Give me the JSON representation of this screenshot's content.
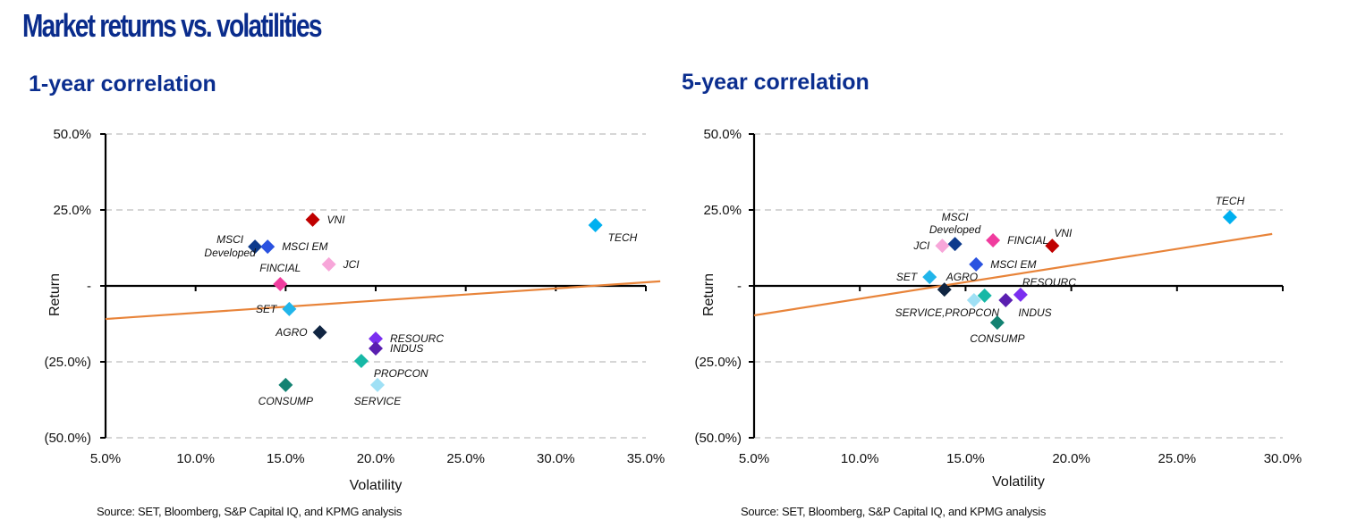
{
  "title": "Market returns vs. volatilities",
  "source_note": "Source: SET, Bloomberg, S&P Capital IQ, and KPMG analysis",
  "chart_data": [
    {
      "type": "scatter",
      "title": "1-year correlation",
      "xlabel": "Volatility",
      "ylabel": "Return",
      "xlim": [
        5,
        35
      ],
      "ylim": [
        -50,
        50
      ],
      "x_ticks": [
        5,
        10,
        15,
        20,
        25,
        30,
        35
      ],
      "x_tick_labels": [
        "5.0%",
        "10.0%",
        "15.0%",
        "20.0%",
        "25.0%",
        "30.0%",
        "35.0%"
      ],
      "y_ticks": [
        50,
        25,
        0,
        -25,
        -50
      ],
      "y_tick_labels": [
        "50.0%",
        "25.0%",
        "-",
        "(25.0%)",
        "(50.0%)"
      ],
      "grid": "horizontal dashed",
      "trendline": {
        "color": "#e8843a",
        "x": [
          5,
          35.8
        ],
        "y": [
          -10.9,
          1.5
        ]
      },
      "points": [
        {
          "label": "VNI",
          "x": 16.5,
          "y": 21.8,
          "color": "#c00000",
          "label_pos": "right"
        },
        {
          "label": "TECH",
          "x": 32.2,
          "y": 20.0,
          "color": "#00b0f0",
          "label_pos": "below-right"
        },
        {
          "label": "MSCI Developed",
          "x": 13.3,
          "y": 12.9,
          "color": "#0d3a8c",
          "label_pos": "left"
        },
        {
          "label": "MSCI EM",
          "x": 14.0,
          "y": 12.9,
          "color": "#2a52e0",
          "label_pos": "right"
        },
        {
          "label": "JCI",
          "x": 17.4,
          "y": 7.1,
          "color": "#f7a6d9",
          "label_pos": "right"
        },
        {
          "label": "FINCIAL",
          "x": 14.7,
          "y": 0.6,
          "color": "#f03c9e",
          "label_pos": "above"
        },
        {
          "label": "SET",
          "x": 15.2,
          "y": -7.6,
          "color": "#21b5ea",
          "label_pos": "left"
        },
        {
          "label": "AGRO",
          "x": 16.9,
          "y": -15.3,
          "color": "#102542",
          "label_pos": "left"
        },
        {
          "label": "RESOURC",
          "x": 20.0,
          "y": -17.4,
          "color": "#7b2ff0",
          "label_pos": "right"
        },
        {
          "label": "INDUS",
          "x": 20.0,
          "y": -20.6,
          "color": "#5a1fb0",
          "label_pos": "right"
        },
        {
          "label": "PROPCON",
          "x": 19.2,
          "y": -24.7,
          "color": "#17b8a6",
          "label_pos": "below-right"
        },
        {
          "label": "CONSUMP",
          "x": 15.0,
          "y": -32.6,
          "color": "#138272",
          "label_pos": "below"
        },
        {
          "label": "SERVICE",
          "x": 20.1,
          "y": -32.6,
          "color": "#9fe0f5",
          "label_pos": "below"
        }
      ]
    },
    {
      "type": "scatter",
      "title": "5-year correlation",
      "xlabel": "Volatility",
      "ylabel": "Return",
      "xlim": [
        5,
        30
      ],
      "ylim": [
        -50,
        50
      ],
      "x_ticks": [
        5,
        10,
        15,
        20,
        25,
        30
      ],
      "x_tick_labels": [
        "5.0%",
        "10.0%",
        "15.0%",
        "20.0%",
        "25.0%",
        "30.0%"
      ],
      "y_ticks": [
        50,
        25,
        0,
        -25,
        -50
      ],
      "y_tick_labels": [
        "50.0%",
        "25.0%",
        "-",
        "(25.0%)",
        "(50.0%)"
      ],
      "grid": "horizontal dashed",
      "trendline": {
        "color": "#e8843a",
        "x": [
          5,
          29.5
        ],
        "y": [
          -9.7,
          17.1
        ]
      },
      "points": [
        {
          "label": "TECH",
          "x": 27.5,
          "y": 22.6,
          "color": "#00b0f0",
          "label_pos": "above"
        },
        {
          "label": "VNI",
          "x": 19.1,
          "y": 13.2,
          "color": "#c00000",
          "label_pos": "above-right"
        },
        {
          "label": "FINCIAL",
          "x": 16.3,
          "y": 15.0,
          "color": "#f03c9e",
          "label_pos": "right"
        },
        {
          "label": "MSCI Developed",
          "x": 14.5,
          "y": 13.8,
          "color": "#0d3a8c",
          "label_pos": "above"
        },
        {
          "label": "JCI",
          "x": 13.9,
          "y": 13.2,
          "color": "#f7a6d9",
          "label_pos": "left"
        },
        {
          "label": "MSCI EM",
          "x": 15.5,
          "y": 7.1,
          "color": "#2a52e0",
          "label_pos": "right"
        },
        {
          "label": "SET",
          "x": 13.3,
          "y": 2.9,
          "color": "#21b5ea",
          "label_pos": "left"
        },
        {
          "label": "AGRO",
          "x": 14.0,
          "y": -1.2,
          "color": "#102542",
          "label_pos": "above-right"
        },
        {
          "label": "SERVICE,PROPCON",
          "x": 15.4,
          "y": -4.7,
          "color": "#9fe0f5",
          "label_pos": "below-left"
        },
        {
          "label": "",
          "x": 15.9,
          "y": -3.2,
          "color": "#17b8a6",
          "label_pos": "none"
        },
        {
          "label": "INDUS",
          "x": 16.9,
          "y": -4.7,
          "color": "#5a1fb0",
          "label_pos": "below-right"
        },
        {
          "label": "RESOURC",
          "x": 17.6,
          "y": -2.9,
          "color": "#7b2ff0",
          "label_pos": "above-right"
        },
        {
          "label": "CONSUMP",
          "x": 16.5,
          "y": -12.1,
          "color": "#138272",
          "label_pos": "below"
        }
      ]
    }
  ]
}
